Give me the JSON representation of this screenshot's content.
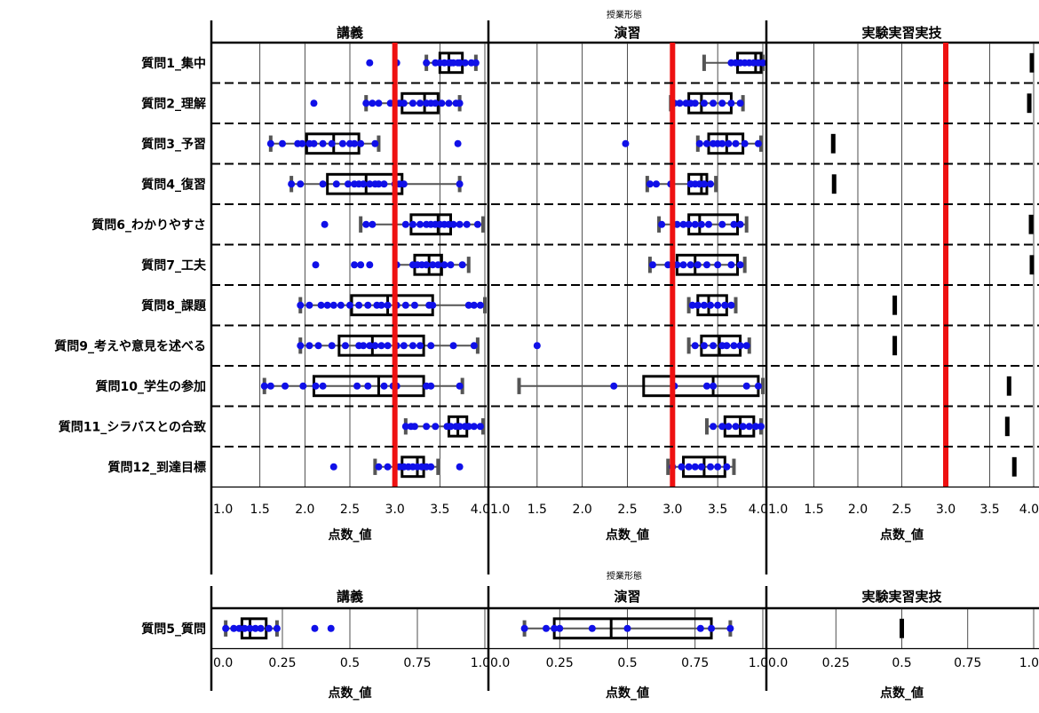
{
  "colors": {
    "point": "#1010e8",
    "box": "#000000",
    "whisker": "#555555",
    "reference": "#ee1111",
    "grid": "#222222"
  },
  "chart_data": [
    {
      "type": "boxplot",
      "facet_title": "授業形態",
      "xlabel": "点数_値",
      "xlim": [
        1.0,
        4.0
      ],
      "xticks": [
        "1.0",
        "1.5",
        "2.0",
        "2.5",
        "3.0",
        "3.5",
        "4.0"
      ],
      "tick_values": [
        1.0,
        1.5,
        2.0,
        2.5,
        3.0,
        3.5,
        4.0
      ],
      "reference_line": 3.0,
      "row_separators": "dashed",
      "facets": [
        "講義",
        "演習",
        "実験実習実技"
      ],
      "questions": [
        "質問1_集中",
        "質問2_理解",
        "質問3_予習",
        "質問4_復習",
        "質問6_わかりやすさ",
        "質問7_工夫",
        "質問8_課題",
        "質問9_考えや意見を述べる",
        "質問10_学生の参加",
        "質問11_シラバスとの合致",
        "質問12_到達目標"
      ],
      "panels": [
        {
          "facet": "講義",
          "boxes": [
            {
              "min": 3.35,
              "q1": 3.5,
              "median": 3.6,
              "q3": 3.75,
              "max": 3.9,
              "points": [
                2.72,
                3.02,
                3.35,
                3.45,
                3.5,
                3.55,
                3.6,
                3.62,
                3.65,
                3.7,
                3.72,
                3.78,
                3.85,
                3.9
              ]
            },
            {
              "min": 2.68,
              "q1": 3.08,
              "median": 3.33,
              "q3": 3.48,
              "max": 3.72,
              "points": [
                2.1,
                2.68,
                2.75,
                2.82,
                2.95,
                3.0,
                3.05,
                3.1,
                3.2,
                3.28,
                3.35,
                3.4,
                3.45,
                3.52,
                3.6,
                3.68,
                3.72
              ]
            },
            {
              "min": 1.62,
              "q1": 2.02,
              "median": 2.32,
              "q3": 2.6,
              "max": 2.82,
              "points": [
                1.62,
                1.75,
                1.92,
                1.97,
                2.05,
                2.1,
                2.2,
                2.3,
                2.42,
                2.5,
                2.55,
                2.62,
                2.78,
                3.7
              ]
            },
            {
              "min": 1.85,
              "q1": 2.25,
              "median": 2.68,
              "q3": 3.08,
              "max": 3.72,
              "points": [
                1.85,
                1.95,
                2.2,
                2.35,
                2.48,
                2.55,
                2.6,
                2.65,
                2.72,
                2.78,
                2.82,
                2.88,
                3.0,
                3.05,
                3.1,
                3.72
              ]
            },
            {
              "min": 2.62,
              "q1": 3.18,
              "median": 3.48,
              "q3": 3.62,
              "max": 3.98,
              "points": [
                2.22,
                2.68,
                2.75,
                3.12,
                3.2,
                3.28,
                3.35,
                3.4,
                3.45,
                3.5,
                3.55,
                3.6,
                3.65,
                3.72,
                3.8,
                3.92
              ]
            },
            {
              "min": 3.0,
              "q1": 3.22,
              "median": 3.38,
              "q3": 3.52,
              "max": 3.82,
              "points": [
                2.12,
                2.55,
                2.62,
                2.72,
                3.02,
                3.2,
                3.25,
                3.3,
                3.35,
                3.42,
                3.48,
                3.55,
                3.62,
                3.75
              ]
            },
            {
              "min": 1.95,
              "q1": 2.52,
              "median": 2.92,
              "q3": 3.42,
              "max": 4.0,
              "points": [
                1.95,
                2.05,
                2.18,
                2.25,
                2.32,
                2.4,
                2.5,
                2.6,
                2.7,
                2.8,
                2.85,
                2.92,
                3.02,
                3.12,
                3.22,
                3.38,
                3.42,
                3.82,
                3.88,
                3.95
              ]
            },
            {
              "min": 1.95,
              "q1": 2.38,
              "median": 2.75,
              "q3": 3.32,
              "max": 3.92,
              "points": [
                1.95,
                2.05,
                2.15,
                2.3,
                2.45,
                2.6,
                2.65,
                2.72,
                2.78,
                2.85,
                2.92,
                3.02,
                3.1,
                3.2,
                3.28,
                3.4,
                3.65,
                3.88
              ]
            },
            {
              "min": 1.55,
              "q1": 2.1,
              "median": 2.82,
              "q3": 3.32,
              "max": 3.75,
              "points": [
                1.55,
                1.62,
                1.78,
                1.98,
                2.12,
                2.2,
                2.58,
                2.7,
                2.88,
                2.98,
                3.02,
                3.35,
                3.4,
                3.72
              ]
            },
            {
              "min": 3.12,
              "q1": 3.6,
              "median": 3.7,
              "q3": 3.8,
              "max": 3.98,
              "points": [
                3.12,
                3.18,
                3.22,
                3.35,
                3.45,
                3.58,
                3.62,
                3.68,
                3.72,
                3.78,
                3.82,
                3.88,
                3.95
              ]
            },
            {
              "min": 2.78,
              "q1": 3.08,
              "median": 3.25,
              "q3": 3.32,
              "max": 3.48,
              "points": [
                2.32,
                2.82,
                2.92,
                3.05,
                3.1,
                3.15,
                3.2,
                3.25,
                3.3,
                3.35,
                3.4,
                3.72
              ]
            }
          ]
        },
        {
          "facet": "演習",
          "boxes": [
            {
              "min": 3.35,
              "q1": 3.72,
              "median": 3.92,
              "q3": 3.98,
              "max": 4.0,
              "points": [
                3.65,
                3.7,
                3.75,
                3.8,
                3.85,
                3.9,
                3.95,
                4.0
              ]
            },
            {
              "min": 2.98,
              "q1": 3.18,
              "median": 3.32,
              "q3": 3.65,
              "max": 3.78,
              "points": [
                3.02,
                3.08,
                3.15,
                3.2,
                3.25,
                3.35,
                3.45,
                3.55,
                3.65,
                3.75
              ]
            },
            {
              "min": 3.28,
              "q1": 3.4,
              "median": 3.6,
              "q3": 3.78,
              "max": 3.98,
              "points": [
                2.48,
                3.3,
                3.38,
                3.45,
                3.5,
                3.55,
                3.62,
                3.7,
                3.8,
                3.95
              ]
            },
            {
              "min": 2.72,
              "q1": 3.18,
              "median": 3.32,
              "q3": 3.38,
              "max": 3.48,
              "points": [
                2.75,
                2.82,
                2.98,
                3.2,
                3.25,
                3.3,
                3.35,
                3.42
              ]
            },
            {
              "min": 2.85,
              "q1": 3.18,
              "median": 3.3,
              "q3": 3.72,
              "max": 3.82,
              "points": [
                2.88,
                3.05,
                3.12,
                3.18,
                3.25,
                3.32,
                3.4,
                3.55,
                3.68,
                3.75
              ]
            },
            {
              "min": 2.75,
              "q1": 3.05,
              "median": 3.25,
              "q3": 3.72,
              "max": 3.8,
              "points": [
                2.78,
                2.95,
                3.05,
                3.12,
                3.2,
                3.28,
                3.38,
                3.5,
                3.65,
                3.75
              ]
            },
            {
              "min": 3.18,
              "q1": 3.28,
              "median": 3.4,
              "q3": 3.6,
              "max": 3.7,
              "points": [
                3.22,
                3.28,
                3.35,
                3.42,
                3.5,
                3.58,
                3.65
              ]
            },
            {
              "min": 3.18,
              "q1": 3.32,
              "median": 3.52,
              "q3": 3.75,
              "max": 3.85,
              "points": [
                1.5,
                3.25,
                3.35,
                3.45,
                3.55,
                3.6,
                3.68,
                3.75,
                3.82
              ]
            },
            {
              "min": 1.3,
              "q1": 2.68,
              "median": 3.45,
              "q3": 3.95,
              "max": 4.0,
              "points": [
                2.35,
                3.02,
                3.38,
                3.45,
                3.82,
                3.95
              ]
            },
            {
              "min": 3.38,
              "q1": 3.58,
              "median": 3.75,
              "q3": 3.9,
              "max": 3.98,
              "points": [
                3.45,
                3.55,
                3.62,
                3.7,
                3.78,
                3.85,
                3.92,
                3.98
              ]
            },
            {
              "min": 2.95,
              "q1": 3.12,
              "median": 3.35,
              "q3": 3.58,
              "max": 3.68,
              "points": [
                3.0,
                3.1,
                3.18,
                3.25,
                3.32,
                3.42,
                3.5,
                3.6
              ]
            }
          ]
        },
        {
          "facet": "実験実習実技",
          "boxes": [
            {
              "min": 3.98,
              "q1": 3.98,
              "median": 3.98,
              "q3": 3.98,
              "max": 3.98,
              "points": [
                3.98
              ]
            },
            {
              "min": 3.95,
              "q1": 3.95,
              "median": 3.95,
              "q3": 3.95,
              "max": 3.95,
              "points": [
                3.95
              ]
            },
            {
              "min": 1.72,
              "q1": 1.72,
              "median": 1.72,
              "q3": 1.72,
              "max": 1.72,
              "points": [
                1.72
              ]
            },
            {
              "min": 1.73,
              "q1": 1.73,
              "median": 1.73,
              "q3": 1.73,
              "max": 1.73,
              "points": [
                1.73
              ]
            },
            {
              "min": 3.97,
              "q1": 3.97,
              "median": 3.97,
              "q3": 3.97,
              "max": 3.97,
              "points": [
                3.97
              ]
            },
            {
              "min": 3.98,
              "q1": 3.98,
              "median": 3.98,
              "q3": 3.98,
              "max": 3.98,
              "points": [
                3.98
              ]
            },
            {
              "min": 2.42,
              "q1": 2.42,
              "median": 2.42,
              "q3": 2.42,
              "max": 2.42,
              "points": [
                2.42
              ]
            },
            {
              "min": 2.42,
              "q1": 2.42,
              "median": 2.42,
              "q3": 2.42,
              "max": 2.42,
              "points": [
                2.42
              ]
            },
            {
              "min": 3.72,
              "q1": 3.72,
              "median": 3.72,
              "q3": 3.72,
              "max": 3.72,
              "points": [
                3.72
              ]
            },
            {
              "min": 3.7,
              "q1": 3.7,
              "median": 3.7,
              "q3": 3.7,
              "max": 3.7,
              "points": [
                3.7
              ]
            },
            {
              "min": 3.78,
              "q1": 3.78,
              "median": 3.78,
              "q3": 3.78,
              "max": 3.78,
              "points": [
                3.78
              ]
            }
          ]
        }
      ]
    },
    {
      "type": "boxplot",
      "facet_title": "授業形態",
      "xlabel": "点数_値",
      "xlim": [
        0.0,
        1.0
      ],
      "xticks": [
        "0.0",
        "0.25",
        "0.5",
        "0.75",
        "1.0"
      ],
      "tick_values": [
        0.0,
        0.25,
        0.5,
        0.75,
        1.0
      ],
      "facets": [
        "講義",
        "演習",
        "実験実習実技"
      ],
      "questions": [
        "質問5_質問"
      ],
      "panels": [
        {
          "facet": "講義",
          "boxes": [
            {
              "min": 0.04,
              "q1": 0.1,
              "median": 0.13,
              "q3": 0.19,
              "max": 0.23,
              "points": [
                0.04,
                0.07,
                0.09,
                0.11,
                0.13,
                0.15,
                0.17,
                0.2,
                0.23,
                0.37,
                0.43
              ]
            }
          ]
        },
        {
          "facet": "演習",
          "boxes": [
            {
              "min": 0.12,
              "q1": 0.23,
              "median": 0.44,
              "q3": 0.81,
              "max": 0.88,
              "points": [
                0.12,
                0.2,
                0.23,
                0.25,
                0.37,
                0.5,
                0.77,
                0.81,
                0.88
              ]
            }
          ]
        },
        {
          "facet": "実験実習実技",
          "boxes": [
            {
              "min": 0.5,
              "q1": 0.5,
              "median": 0.5,
              "q3": 0.5,
              "max": 0.5,
              "points": [
                0.5
              ]
            }
          ]
        }
      ]
    }
  ]
}
